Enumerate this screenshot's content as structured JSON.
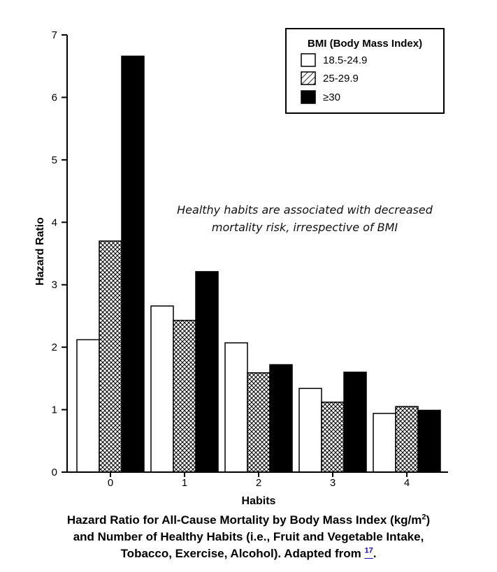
{
  "chart_data": {
    "type": "bar",
    "title": "Hazard Ratio for All-Cause Mortality by Body Mass Index (kg/m2) and Number of Healthy Habits (i.e., Fruit and Vegetable Intake, Tobacco, Exercise, Alcohol). Adapted from 17.",
    "xlabel": "Habits",
    "ylabel": "Hazard Ratio",
    "categories": [
      "0",
      "1",
      "2",
      "3",
      "4"
    ],
    "ylim": [
      0,
      7
    ],
    "yticks": [
      "0",
      "1",
      "2",
      "3",
      "4",
      "5",
      "6",
      "7"
    ],
    "legend_title": "BMI (Body Mass Index)",
    "legend_position": "top-right",
    "series": [
      {
        "name": "18.5-24.9",
        "fill": "white",
        "values": [
          2.12,
          2.66,
          2.07,
          1.34,
          0.94
        ]
      },
      {
        "name": "25-29.9",
        "fill": "hatched",
        "values": [
          3.7,
          2.43,
          1.59,
          1.12,
          1.05
        ]
      },
      {
        "name": "≥30",
        "fill": "black",
        "values": [
          6.66,
          3.21,
          1.72,
          1.6,
          0.99
        ]
      }
    ],
    "annotation_lines": [
      "Healthy habits are associated with decreased",
      "mortality risk, irrespective of BMI"
    ]
  },
  "caption": {
    "line1_a": "Hazard Ratio for All-Cause Mortality by Body Mass Index (kg/m",
    "line1_sup": "2",
    "line1_b": ")",
    "line2": "and Number of Healthy Habits (i.e., Fruit and Vegetable Intake,",
    "line3": "Tobacco, Exercise, Alcohol). Adapted from ",
    "ref_label": "17",
    "line3_end": "."
  }
}
